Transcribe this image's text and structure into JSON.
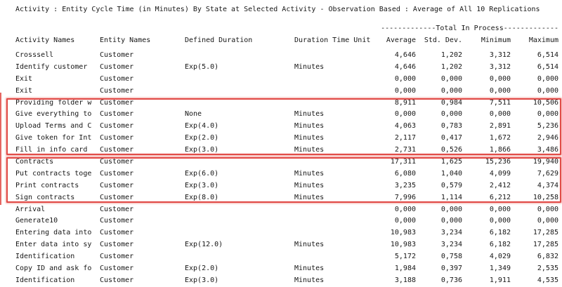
{
  "title": "Activity : Entity Cycle Time (in Minutes) By State at Selected Activity - Observation Based : Average of All 10 Replications",
  "table": {
    "group_header": "-------------Total In Process-------------",
    "columns": {
      "activity": "Activity Names",
      "entity": "Entity Names",
      "duration": "Defined Duration",
      "unit": "Duration Time Unit",
      "avg": "Average",
      "std": "Std. Dev.",
      "min": "Minimum",
      "max": "Maximum"
    },
    "rows": [
      {
        "activity": "Crosssell",
        "entity": "Customer",
        "duration": "",
        "unit": "",
        "avg": "4,646",
        "std": "1,202",
        "min": "3,312",
        "max": "6,514"
      },
      {
        "activity": "Identify customer",
        "entity": "Customer",
        "duration": "Exp(5.0)",
        "unit": "Minutes",
        "avg": "4,646",
        "std": "1,202",
        "min": "3,312",
        "max": "6,514"
      },
      {
        "activity": "Exit",
        "entity": "Customer",
        "duration": "",
        "unit": "",
        "avg": "0,000",
        "std": "0,000",
        "min": "0,000",
        "max": "0,000"
      },
      {
        "activity": "Exit",
        "entity": "Customer",
        "duration": "",
        "unit": "",
        "avg": "0,000",
        "std": "0,000",
        "min": "0,000",
        "max": "0,000"
      },
      {
        "activity": "Providing folder w",
        "entity": "Customer",
        "duration": "",
        "unit": "",
        "avg": "8,911",
        "std": "0,984",
        "min": "7,511",
        "max": "10,506"
      },
      {
        "activity": "Give everything to",
        "entity": "Customer",
        "duration": "None",
        "unit": "Minutes",
        "avg": "0,000",
        "std": "0,000",
        "min": "0,000",
        "max": "0,000"
      },
      {
        "activity": "Upload Terms and C",
        "entity": "Customer",
        "duration": "Exp(4.0)",
        "unit": "Minutes",
        "avg": "4,063",
        "std": "0,783",
        "min": "2,891",
        "max": "5,236"
      },
      {
        "activity": "Give token for Int",
        "entity": "Customer",
        "duration": "Exp(2.0)",
        "unit": "Minutes",
        "avg": "2,117",
        "std": "0,417",
        "min": "1,672",
        "max": "2,946"
      },
      {
        "activity": "Fill in info card",
        "entity": "Customer",
        "duration": "Exp(3.0)",
        "unit": "Minutes",
        "avg": "2,731",
        "std": "0,526",
        "min": "1,866",
        "max": "3,486"
      },
      {
        "activity": "Contracts",
        "entity": "Customer",
        "duration": "",
        "unit": "",
        "avg": "17,311",
        "std": "1,625",
        "min": "15,236",
        "max": "19,940"
      },
      {
        "activity": "Put contracts toge",
        "entity": "Customer",
        "duration": "Exp(6.0)",
        "unit": "Minutes",
        "avg": "6,080",
        "std": "1,040",
        "min": "4,099",
        "max": "7,629"
      },
      {
        "activity": "Print contracts",
        "entity": "Customer",
        "duration": "Exp(3.0)",
        "unit": "Minutes",
        "avg": "3,235",
        "std": "0,579",
        "min": "2,412",
        "max": "4,374"
      },
      {
        "activity": "Sign contracts",
        "entity": "Customer",
        "duration": "Exp(8.0)",
        "unit": "Minutes",
        "avg": "7,996",
        "std": "1,114",
        "min": "6,212",
        "max": "10,258"
      },
      {
        "activity": "Arrival",
        "entity": "Customer",
        "duration": "",
        "unit": "",
        "avg": "0,000",
        "std": "0,000",
        "min": "0,000",
        "max": "0,000"
      },
      {
        "activity": "Generate10",
        "entity": "Customer",
        "duration": "",
        "unit": "",
        "avg": "0,000",
        "std": "0,000",
        "min": "0,000",
        "max": "0,000"
      },
      {
        "activity": "Entering data into",
        "entity": "Customer",
        "duration": "",
        "unit": "",
        "avg": "10,983",
        "std": "3,234",
        "min": "6,182",
        "max": "17,285"
      },
      {
        "activity": "Enter data into sy",
        "entity": "Customer",
        "duration": "Exp(12.0)",
        "unit": "Minutes",
        "avg": "10,983",
        "std": "3,234",
        "min": "6,182",
        "max": "17,285"
      },
      {
        "activity": "Identification",
        "entity": "Customer",
        "duration": "",
        "unit": "",
        "avg": "5,172",
        "std": "0,758",
        "min": "4,029",
        "max": "6,832"
      },
      {
        "activity": "Copy ID and ask fo",
        "entity": "Customer",
        "duration": "Exp(2.0)",
        "unit": "Minutes",
        "avg": "1,984",
        "std": "0,397",
        "min": "1,349",
        "max": "2,535"
      },
      {
        "activity": "Identification",
        "entity": "Customer",
        "duration": "Exp(3.0)",
        "unit": "Minutes",
        "avg": "3,188",
        "std": "0,736",
        "min": "1,911",
        "max": "4,535"
      }
    ]
  },
  "annotations": {
    "color": "#e14b47",
    "groups": [
      {
        "first_row": 5,
        "last_row": 9
      },
      {
        "first_row": 10,
        "last_row": 13
      }
    ]
  }
}
